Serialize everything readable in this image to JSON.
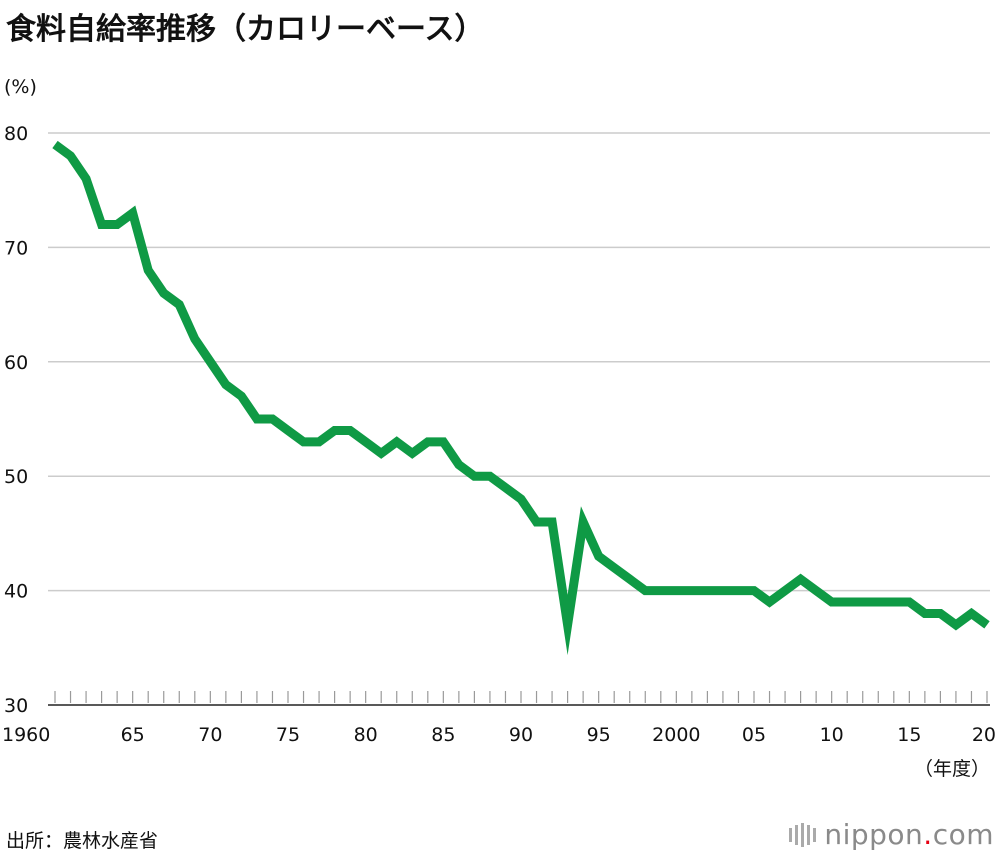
{
  "title": "食料自給率推移（カロリーベース）",
  "y_unit": "(%)",
  "x_unit": "（年度）",
  "source": "出所：農林水産省",
  "logo": {
    "prefix": "nippon",
    "dot": ".",
    "suffix": "com"
  },
  "colors": {
    "line": "#0f9a45",
    "grid": "#cccccc",
    "text": "#111111",
    "logo_dot": "#e60012"
  },
  "chart_data": {
    "type": "line",
    "title": "食料自給率推移（カロリーベース）",
    "ylabel": "(%)",
    "xlabel": "（年度）",
    "ylim": [
      30,
      80
    ],
    "xlim": [
      1960,
      2020
    ],
    "grid": true,
    "y_ticks": [
      30,
      40,
      50,
      60,
      70,
      80
    ],
    "x_tick_labels": [
      {
        "x": 1960,
        "label": "1960"
      },
      {
        "x": 1965,
        "label": "65"
      },
      {
        "x": 1970,
        "label": "70"
      },
      {
        "x": 1975,
        "label": "75"
      },
      {
        "x": 1980,
        "label": "80"
      },
      {
        "x": 1985,
        "label": "85"
      },
      {
        "x": 1990,
        "label": "90"
      },
      {
        "x": 1995,
        "label": "95"
      },
      {
        "x": 2000,
        "label": "2000"
      },
      {
        "x": 2005,
        "label": "05"
      },
      {
        "x": 2010,
        "label": "10"
      },
      {
        "x": 2015,
        "label": "15"
      },
      {
        "x": 2020,
        "label": "20"
      }
    ],
    "series": [
      {
        "x": [
          1960,
          1961,
          1962,
          1963,
          1964,
          1965,
          1966,
          1967,
          1968,
          1969,
          1970,
          1971,
          1972,
          1973,
          1974,
          1975,
          1976,
          1977,
          1978,
          1979,
          1980,
          1981,
          1982,
          1983,
          1984,
          1985,
          1986,
          1987,
          1988,
          1989,
          1990,
          1991,
          1992,
          1993,
          1994,
          1995,
          1996,
          1997,
          1998,
          1999,
          2000,
          2001,
          2002,
          2003,
          2004,
          2005,
          2006,
          2007,
          2008,
          2009,
          2010,
          2011,
          2012,
          2013,
          2014,
          2015,
          2016,
          2017,
          2018,
          2019,
          2020
        ],
        "values": [
          79,
          78,
          76,
          72,
          72,
          73,
          68,
          66,
          65,
          62,
          60,
          58,
          57,
          55,
          55,
          54,
          53,
          53,
          54,
          54,
          53,
          52,
          53,
          52,
          53,
          53,
          51,
          50,
          50,
          49,
          48,
          46,
          46,
          37,
          46,
          43,
          42,
          41,
          40,
          40,
          40,
          40,
          40,
          40,
          40,
          40,
          39,
          40,
          41,
          40,
          39,
          39,
          39,
          39,
          39,
          39,
          38,
          38,
          37,
          38,
          37
        ]
      }
    ]
  }
}
